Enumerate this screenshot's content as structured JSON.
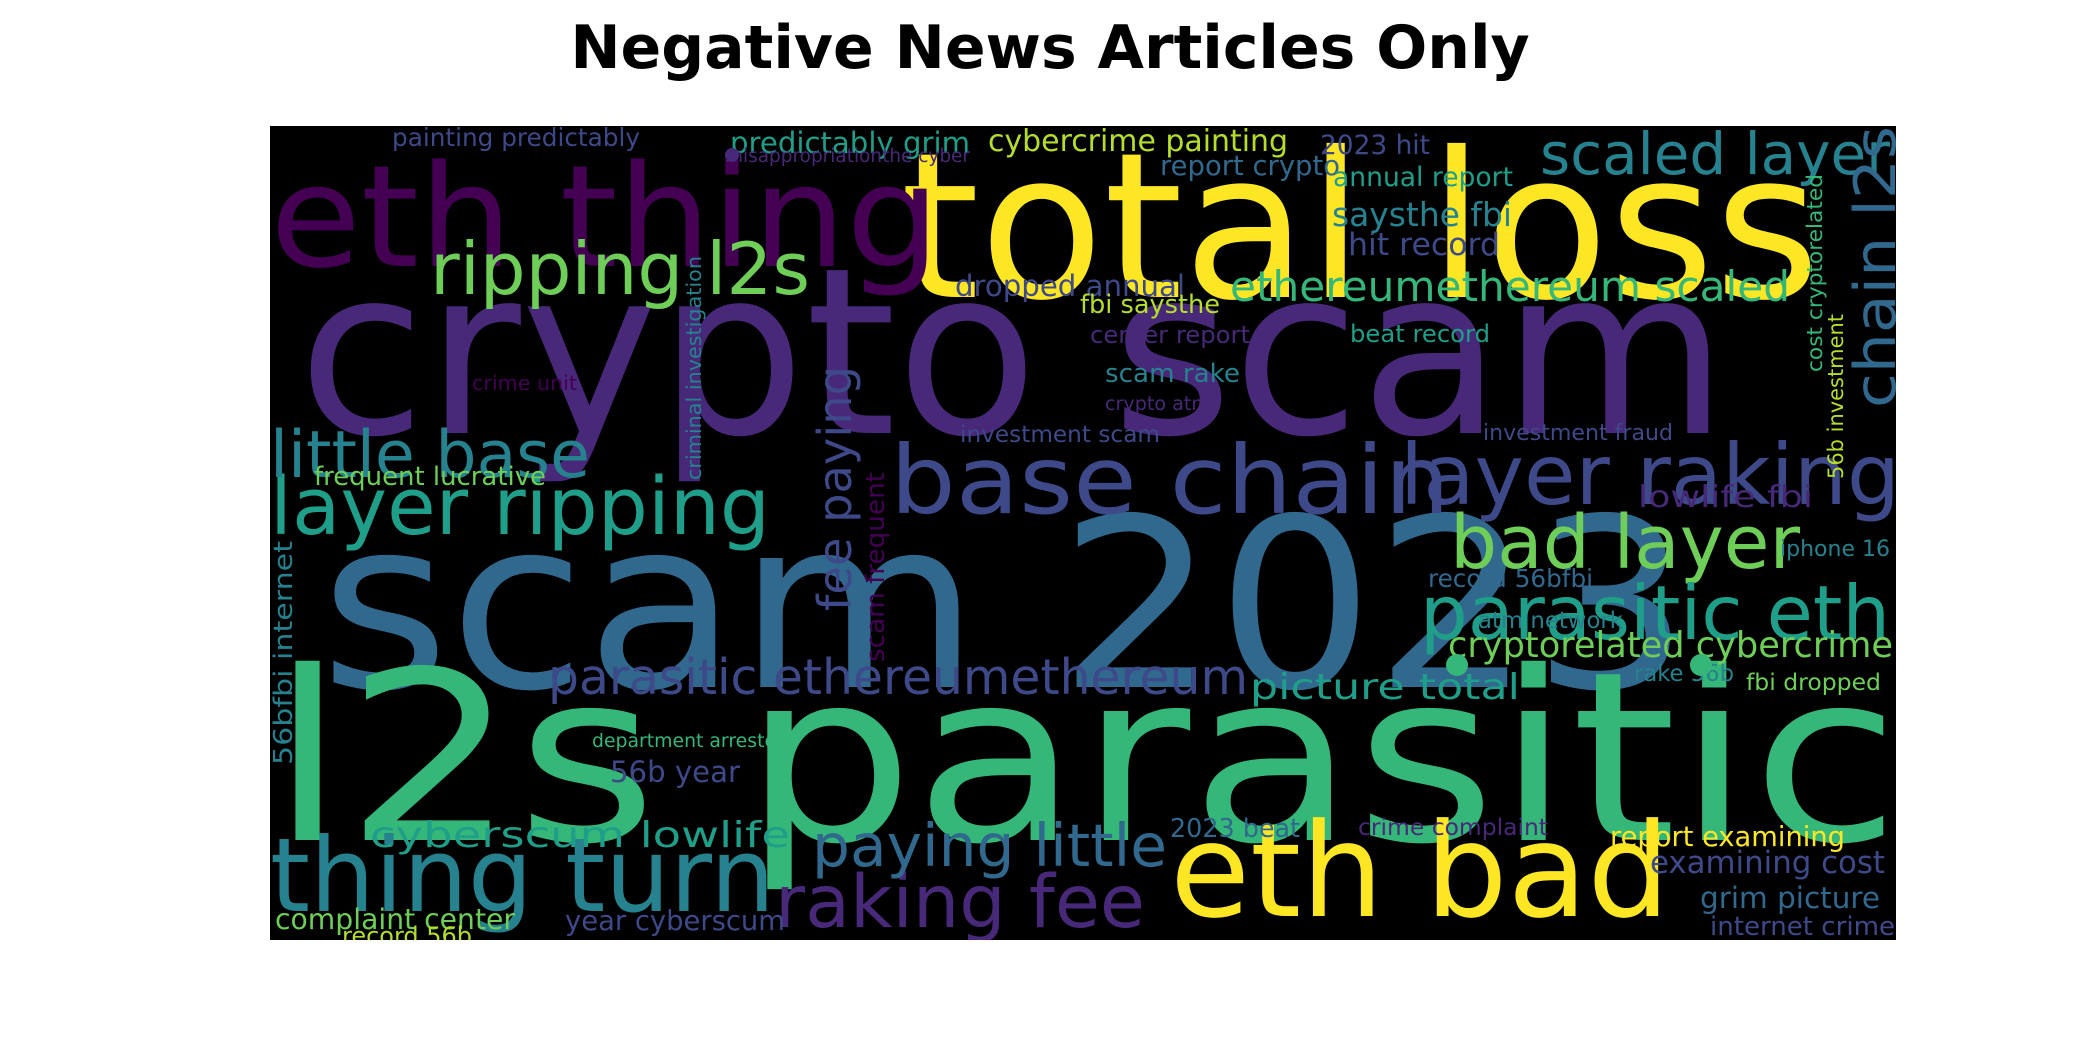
{
  "title": "Negative News Articles Only",
  "colormap": {
    "purple_dark": "#440154",
    "purple": "#482878",
    "indigo": "#3e4989",
    "blue": "#31688e",
    "teal": "#26828e",
    "teal_green": "#1f9e89",
    "green": "#35b779",
    "light_green": "#6ece58",
    "yellow_green": "#b5de2b",
    "yellow": "#fde725"
  },
  "words": [
    {
      "text": "crypto scam",
      "color": "#482878"
    },
    {
      "text": "total loss",
      "color": "#fde725"
    },
    {
      "text": "eth thing",
      "color": "#440154"
    },
    {
      "text": "scam 2023",
      "color": "#31688e"
    },
    {
      "text": "l2s parasitic",
      "color": "#35b779"
    },
    {
      "text": "eth bad",
      "color": "#fde725"
    },
    {
      "text": "base chain",
      "color": "#3e4989"
    },
    {
      "text": "layer raking",
      "color": "#3e4989"
    },
    {
      "text": "thing turn",
      "color": "#26828e"
    },
    {
      "text": "raking fee",
      "color": "#482878"
    },
    {
      "text": "layer ripping",
      "color": "#1f9e89"
    },
    {
      "text": "ripping l2s",
      "color": "#6ece58"
    },
    {
      "text": "little base",
      "color": "#26828e"
    },
    {
      "text": "bad layer",
      "color": "#6ece58"
    },
    {
      "text": "parasitic eth",
      "color": "#1f9e89"
    },
    {
      "text": "scaled layer",
      "color": "#26828e"
    },
    {
      "text": "ethereumethereum scaled",
      "color": "#35b779"
    },
    {
      "text": "parasitic ethereumethereum",
      "color": "#3e4989"
    },
    {
      "text": "paying little",
      "color": "#31688e"
    },
    {
      "text": "fee paying",
      "color": "#3e4989"
    },
    {
      "text": "chain l2s",
      "color": "#31688e"
    },
    {
      "text": "cryptorelated cybercrime",
      "color": "#6ece58"
    },
    {
      "text": "picture total",
      "color": "#1f9e89"
    },
    {
      "text": "examining cost",
      "color": "#3e4989"
    },
    {
      "text": "report examining",
      "color": "#fde725"
    },
    {
      "text": "grim picture",
      "color": "#31688e"
    },
    {
      "text": "internet crime",
      "color": "#3e4989"
    },
    {
      "text": "cyberscum lowlife",
      "color": "#1f9e89"
    },
    {
      "text": "year cyberscum",
      "color": "#3e4989"
    },
    {
      "text": "56b year",
      "color": "#3e4989"
    },
    {
      "text": "cybercrime painting",
      "color": "#b5de2b"
    },
    {
      "text": "predictably grim",
      "color": "#1f9e89"
    },
    {
      "text": "painting predictably",
      "color": "#3e4989"
    },
    {
      "text": "misappropriationthe cyber",
      "color": "#482878"
    },
    {
      "text": "2023 hit",
      "color": "#3e4989"
    },
    {
      "text": "report crypto",
      "color": "#31688e"
    },
    {
      "text": "annual report",
      "color": "#1f9e89"
    },
    {
      "text": "hit record",
      "color": "#3e4989"
    },
    {
      "text": "saysthe fbi",
      "color": "#26828e"
    },
    {
      "text": "dropped annual",
      "color": "#3e4989"
    },
    {
      "text": "fbi saysthe",
      "color": "#b5de2b"
    },
    {
      "text": "center report",
      "color": "#482878"
    },
    {
      "text": "beat record",
      "color": "#1f9e89"
    },
    {
      "text": "scam rake",
      "color": "#26828e"
    },
    {
      "text": "crypto atm",
      "color": "#482878"
    },
    {
      "text": "investment scam",
      "color": "#3e4989"
    },
    {
      "text": "investment fraud",
      "color": "#3e4989"
    },
    {
      "text": "lowlife fbi",
      "color": "#482878"
    },
    {
      "text": "iphone 16",
      "color": "#26828e"
    },
    {
      "text": "record 56bfbi",
      "color": "#31688e"
    },
    {
      "text": "atm network",
      "color": "#26828e"
    },
    {
      "text": "rake 56b",
      "color": "#26828e"
    },
    {
      "text": "fbi dropped",
      "color": "#6ece58"
    },
    {
      "text": "2023 beat",
      "color": "#31688e"
    },
    {
      "text": "crime complaint",
      "color": "#482878"
    },
    {
      "text": "crime unit",
      "color": "#440154"
    },
    {
      "text": "frequent lucrative",
      "color": "#6ece58"
    },
    {
      "text": "department arrested",
      "color": "#35b779"
    },
    {
      "text": "complaint center",
      "color": "#6ece58"
    },
    {
      "text": "record 56b",
      "color": "#b5de2b"
    },
    {
      "text": "56bfbi internet",
      "color": "#26828e"
    },
    {
      "text": "criminal investigation",
      "color": "#26828e"
    },
    {
      "text": "scam frequent",
      "color": "#440154"
    },
    {
      "text": "cost cryptorelated",
      "color": "#35b779"
    },
    {
      "text": "56b investment",
      "color": "#b5de2b"
    }
  ]
}
